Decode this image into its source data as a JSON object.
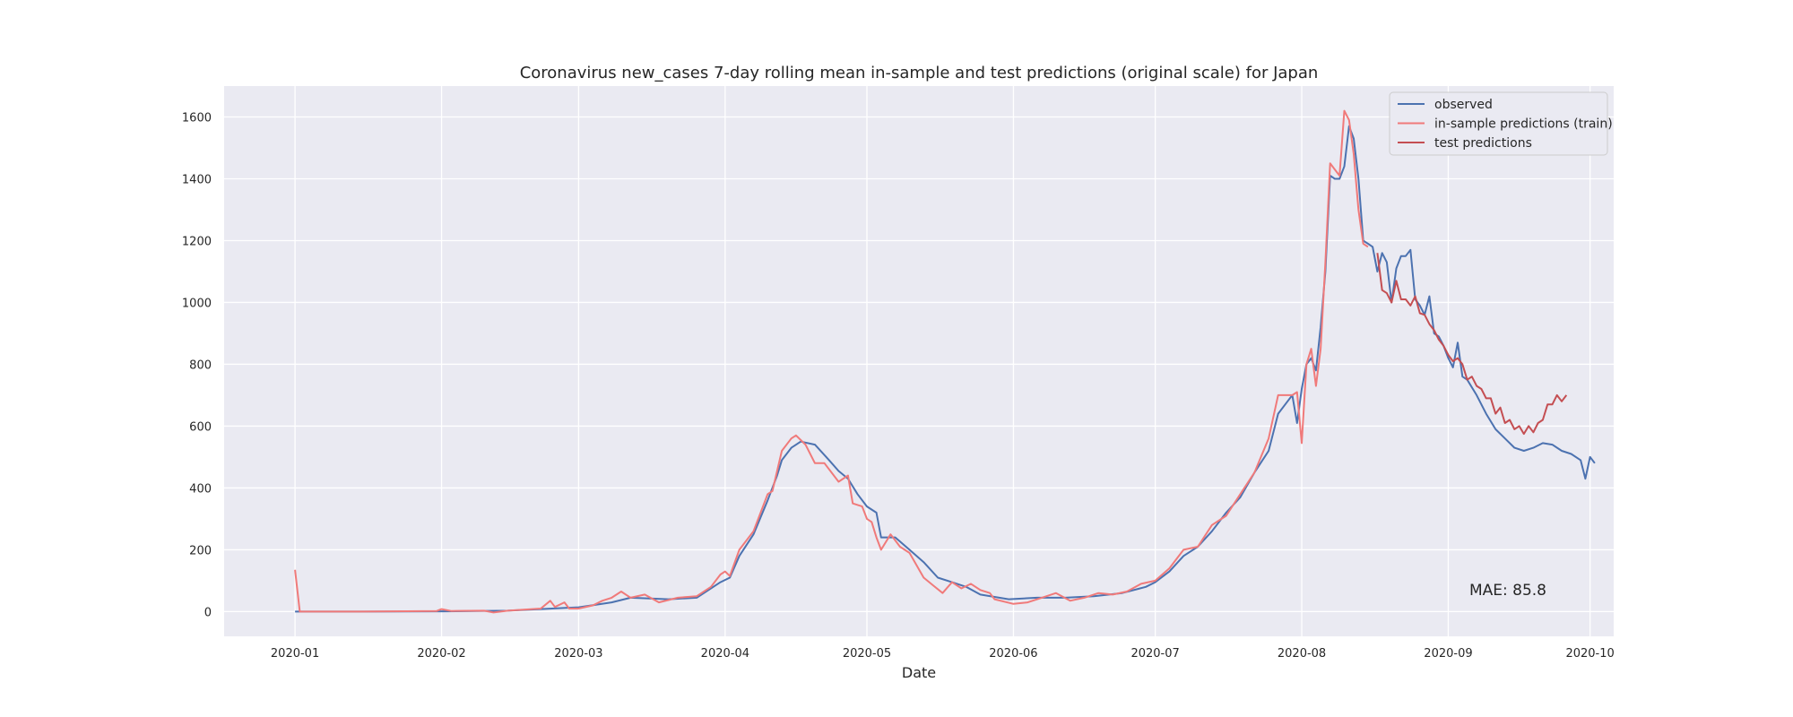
{
  "chart_data": {
    "type": "line",
    "title": "Coronavirus new_cases 7-day rolling mean in-sample and test predictions (original scale) for Japan",
    "xlabel": "Date",
    "ylabel": "",
    "x_range": [
      "2019-12-17",
      "2020-10-06"
    ],
    "ylim": [
      -80,
      1700
    ],
    "x_ticks": [
      "2020-01",
      "2020-02",
      "2020-03",
      "2020-04",
      "2020-05",
      "2020-06",
      "2020-07",
      "2020-08",
      "2020-09",
      "2020-10"
    ],
    "y_ticks": [
      0,
      200,
      400,
      600,
      800,
      1000,
      1200,
      1400,
      1600
    ],
    "grid": true,
    "background": "#eaeaf2",
    "legend_position": "top-right",
    "annotation": "MAE: 85.8",
    "series": [
      {
        "name": "observed",
        "color": "#4c72b0",
        "points": [
          [
            "2020-01-01",
            0
          ],
          [
            "2020-01-15",
            0
          ],
          [
            "2020-02-01",
            1
          ],
          [
            "2020-02-15",
            3
          ],
          [
            "2020-02-22",
            8
          ],
          [
            "2020-03-01",
            14
          ],
          [
            "2020-03-08",
            30
          ],
          [
            "2020-03-12",
            45
          ],
          [
            "2020-03-20",
            40
          ],
          [
            "2020-03-26",
            45
          ],
          [
            "2020-03-31",
            95
          ],
          [
            "2020-04-02",
            110
          ],
          [
            "2020-04-04",
            180
          ],
          [
            "2020-04-07",
            250
          ],
          [
            "2020-04-10",
            360
          ],
          [
            "2020-04-12",
            440
          ],
          [
            "2020-04-13",
            490
          ],
          [
            "2020-04-15",
            530
          ],
          [
            "2020-04-17",
            550
          ],
          [
            "2020-04-20",
            540
          ],
          [
            "2020-04-23",
            490
          ],
          [
            "2020-04-25",
            455
          ],
          [
            "2020-04-27",
            430
          ],
          [
            "2020-04-29",
            380
          ],
          [
            "2020-05-01",
            340
          ],
          [
            "2020-05-03",
            320
          ],
          [
            "2020-05-04",
            240
          ],
          [
            "2020-05-07",
            240
          ],
          [
            "2020-05-10",
            200
          ],
          [
            "2020-05-13",
            160
          ],
          [
            "2020-05-16",
            110
          ],
          [
            "2020-05-19",
            95
          ],
          [
            "2020-05-22",
            80
          ],
          [
            "2020-05-25",
            55
          ],
          [
            "2020-05-31",
            40
          ],
          [
            "2020-06-06",
            45
          ],
          [
            "2020-06-12",
            45
          ],
          [
            "2020-06-18",
            50
          ],
          [
            "2020-06-24",
            60
          ],
          [
            "2020-06-29",
            80
          ],
          [
            "2020-07-01",
            95
          ],
          [
            "2020-07-04",
            130
          ],
          [
            "2020-07-07",
            180
          ],
          [
            "2020-07-10",
            210
          ],
          [
            "2020-07-13",
            260
          ],
          [
            "2020-07-16",
            320
          ],
          [
            "2020-07-19",
            370
          ],
          [
            "2020-07-22",
            450
          ],
          [
            "2020-07-25",
            520
          ],
          [
            "2020-07-27",
            640
          ],
          [
            "2020-07-29",
            680
          ],
          [
            "2020-07-30",
            700
          ],
          [
            "2020-07-31",
            610
          ],
          [
            "2020-08-01",
            720
          ],
          [
            "2020-08-02",
            800
          ],
          [
            "2020-08-03",
            820
          ],
          [
            "2020-08-04",
            780
          ],
          [
            "2020-08-05",
            920
          ],
          [
            "2020-08-06",
            1100
          ],
          [
            "2020-08-07",
            1410
          ],
          [
            "2020-08-08",
            1400
          ],
          [
            "2020-08-09",
            1400
          ],
          [
            "2020-08-10",
            1440
          ],
          [
            "2020-08-11",
            1570
          ],
          [
            "2020-08-12",
            1530
          ],
          [
            "2020-08-13",
            1400
          ],
          [
            "2020-08-14",
            1200
          ],
          [
            "2020-08-15",
            1190
          ],
          [
            "2020-08-16",
            1180
          ],
          [
            "2020-08-17",
            1100
          ],
          [
            "2020-08-18",
            1160
          ],
          [
            "2020-08-19",
            1130
          ],
          [
            "2020-08-20",
            1000
          ],
          [
            "2020-08-21",
            1110
          ],
          [
            "2020-08-22",
            1150
          ],
          [
            "2020-08-23",
            1150
          ],
          [
            "2020-08-24",
            1170
          ],
          [
            "2020-08-25",
            1010
          ],
          [
            "2020-08-26",
            990
          ],
          [
            "2020-08-27",
            960
          ],
          [
            "2020-08-28",
            1020
          ],
          [
            "2020-08-29",
            900
          ],
          [
            "2020-08-30",
            890
          ],
          [
            "2020-08-31",
            860
          ],
          [
            "2020-09-01",
            820
          ],
          [
            "2020-09-02",
            790
          ],
          [
            "2020-09-03",
            870
          ],
          [
            "2020-09-04",
            760
          ],
          [
            "2020-09-05",
            750
          ],
          [
            "2020-09-07",
            700
          ],
          [
            "2020-09-09",
            640
          ],
          [
            "2020-09-11",
            590
          ],
          [
            "2020-09-13",
            560
          ],
          [
            "2020-09-15",
            530
          ],
          [
            "2020-09-17",
            520
          ],
          [
            "2020-09-19",
            530
          ],
          [
            "2020-09-21",
            545
          ],
          [
            "2020-09-23",
            540
          ],
          [
            "2020-09-25",
            520
          ],
          [
            "2020-09-27",
            510
          ],
          [
            "2020-09-29",
            490
          ],
          [
            "2020-09-30",
            430
          ],
          [
            "2020-10-01",
            500
          ],
          [
            "2020-10-02",
            480
          ]
        ]
      },
      {
        "name": "in-sample predictions (train)",
        "color": "#f07a7a",
        "points": [
          [
            "2020-01-01",
            135
          ],
          [
            "2020-01-02",
            0
          ],
          [
            "2020-01-15",
            0
          ],
          [
            "2020-01-31",
            2
          ],
          [
            "2020-02-01",
            8
          ],
          [
            "2020-02-03",
            2
          ],
          [
            "2020-02-10",
            3
          ],
          [
            "2020-02-12",
            -3
          ],
          [
            "2020-02-15",
            3
          ],
          [
            "2020-02-22",
            10
          ],
          [
            "2020-02-24",
            35
          ],
          [
            "2020-02-25",
            15
          ],
          [
            "2020-02-27",
            30
          ],
          [
            "2020-02-28",
            10
          ],
          [
            "2020-03-01",
            10
          ],
          [
            "2020-03-04",
            20
          ],
          [
            "2020-03-06",
            35
          ],
          [
            "2020-03-08",
            45
          ],
          [
            "2020-03-10",
            65
          ],
          [
            "2020-03-12",
            45
          ],
          [
            "2020-03-15",
            55
          ],
          [
            "2020-03-18",
            30
          ],
          [
            "2020-03-22",
            45
          ],
          [
            "2020-03-26",
            50
          ],
          [
            "2020-03-29",
            80
          ],
          [
            "2020-03-31",
            120
          ],
          [
            "2020-04-01",
            130
          ],
          [
            "2020-04-02",
            115
          ],
          [
            "2020-04-04",
            200
          ],
          [
            "2020-04-07",
            260
          ],
          [
            "2020-04-10",
            380
          ],
          [
            "2020-04-11",
            390
          ],
          [
            "2020-04-13",
            520
          ],
          [
            "2020-04-15",
            560
          ],
          [
            "2020-04-16",
            570
          ],
          [
            "2020-04-18",
            540
          ],
          [
            "2020-04-20",
            480
          ],
          [
            "2020-04-22",
            480
          ],
          [
            "2020-04-25",
            420
          ],
          [
            "2020-04-27",
            440
          ],
          [
            "2020-04-28",
            350
          ],
          [
            "2020-04-30",
            340
          ],
          [
            "2020-05-01",
            300
          ],
          [
            "2020-05-02",
            290
          ],
          [
            "2020-05-03",
            240
          ],
          [
            "2020-05-04",
            200
          ],
          [
            "2020-05-06",
            250
          ],
          [
            "2020-05-08",
            210
          ],
          [
            "2020-05-10",
            190
          ],
          [
            "2020-05-13",
            110
          ],
          [
            "2020-05-15",
            85
          ],
          [
            "2020-05-17",
            60
          ],
          [
            "2020-05-19",
            95
          ],
          [
            "2020-05-21",
            75
          ],
          [
            "2020-05-23",
            90
          ],
          [
            "2020-05-25",
            70
          ],
          [
            "2020-05-27",
            60
          ],
          [
            "2020-05-28",
            40
          ],
          [
            "2020-06-01",
            25
          ],
          [
            "2020-06-04",
            30
          ],
          [
            "2020-06-07",
            45
          ],
          [
            "2020-06-10",
            60
          ],
          [
            "2020-06-13",
            35
          ],
          [
            "2020-06-16",
            45
          ],
          [
            "2020-06-19",
            60
          ],
          [
            "2020-06-22",
            55
          ],
          [
            "2020-06-25",
            65
          ],
          [
            "2020-06-28",
            90
          ],
          [
            "2020-07-01",
            100
          ],
          [
            "2020-07-04",
            140
          ],
          [
            "2020-07-07",
            200
          ],
          [
            "2020-07-10",
            210
          ],
          [
            "2020-07-13",
            280
          ],
          [
            "2020-07-16",
            310
          ],
          [
            "2020-07-19",
            380
          ],
          [
            "2020-07-22",
            450
          ],
          [
            "2020-07-25",
            560
          ],
          [
            "2020-07-27",
            700
          ],
          [
            "2020-07-30",
            700
          ],
          [
            "2020-07-31",
            710
          ],
          [
            "2020-08-01",
            545
          ],
          [
            "2020-08-02",
            800
          ],
          [
            "2020-08-03",
            850
          ],
          [
            "2020-08-04",
            730
          ],
          [
            "2020-08-05",
            850
          ],
          [
            "2020-08-06",
            1130
          ],
          [
            "2020-08-07",
            1450
          ],
          [
            "2020-08-08",
            1430
          ],
          [
            "2020-08-09",
            1410
          ],
          [
            "2020-08-10",
            1620
          ],
          [
            "2020-08-11",
            1590
          ],
          [
            "2020-08-12",
            1480
          ],
          [
            "2020-08-13",
            1300
          ],
          [
            "2020-08-14",
            1190
          ],
          [
            "2020-08-15",
            1180
          ]
        ]
      },
      {
        "name": "test predictions",
        "color": "#c44e52",
        "points": [
          [
            "2020-08-17",
            1160
          ],
          [
            "2020-08-18",
            1040
          ],
          [
            "2020-08-19",
            1030
          ],
          [
            "2020-08-20",
            1000
          ],
          [
            "2020-08-21",
            1070
          ],
          [
            "2020-08-22",
            1010
          ],
          [
            "2020-08-23",
            1010
          ],
          [
            "2020-08-24",
            990
          ],
          [
            "2020-08-25",
            1020
          ],
          [
            "2020-08-26",
            965
          ],
          [
            "2020-08-27",
            960
          ],
          [
            "2020-08-28",
            930
          ],
          [
            "2020-08-29",
            910
          ],
          [
            "2020-08-30",
            880
          ],
          [
            "2020-08-31",
            860
          ],
          [
            "2020-09-01",
            830
          ],
          [
            "2020-09-02",
            810
          ],
          [
            "2020-09-03",
            820
          ],
          [
            "2020-09-04",
            800
          ],
          [
            "2020-09-05",
            750
          ],
          [
            "2020-09-06",
            760
          ],
          [
            "2020-09-07",
            730
          ],
          [
            "2020-09-08",
            720
          ],
          [
            "2020-09-09",
            690
          ],
          [
            "2020-09-10",
            690
          ],
          [
            "2020-09-11",
            640
          ],
          [
            "2020-09-12",
            660
          ],
          [
            "2020-09-13",
            610
          ],
          [
            "2020-09-14",
            620
          ],
          [
            "2020-09-15",
            590
          ],
          [
            "2020-09-16",
            600
          ],
          [
            "2020-09-17",
            575
          ],
          [
            "2020-09-18",
            600
          ],
          [
            "2020-09-19",
            580
          ],
          [
            "2020-09-20",
            610
          ],
          [
            "2020-09-21",
            620
          ],
          [
            "2020-09-22",
            670
          ],
          [
            "2020-09-23",
            670
          ],
          [
            "2020-09-24",
            700
          ],
          [
            "2020-09-25",
            680
          ],
          [
            "2020-09-26",
            700
          ]
        ]
      }
    ]
  }
}
